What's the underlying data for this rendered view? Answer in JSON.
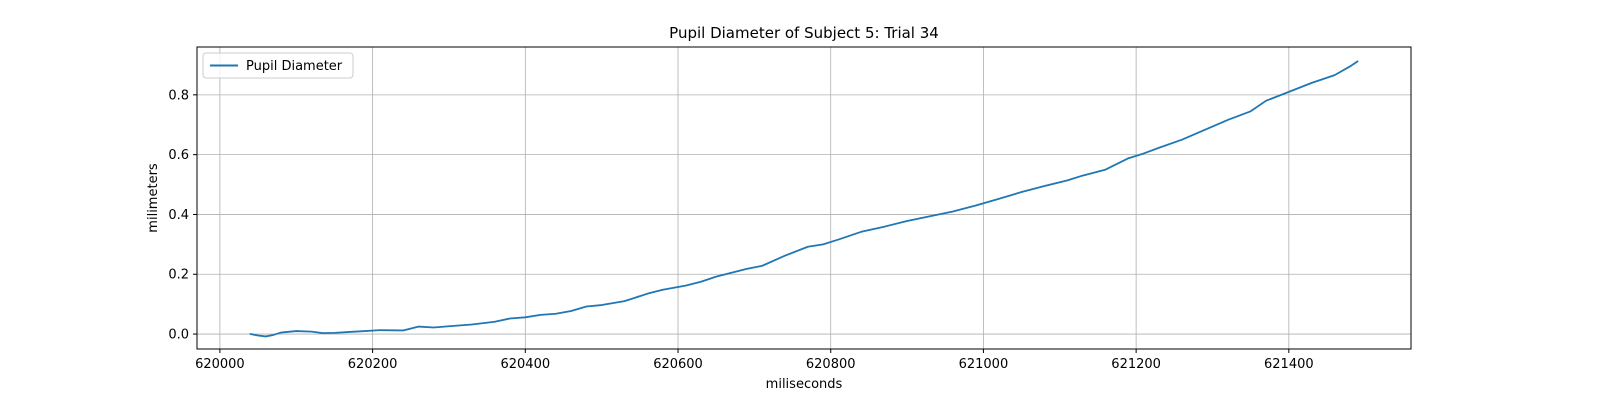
{
  "chart_data": {
    "type": "line",
    "title": "Pupil Diameter of Subject 5: Trial 34",
    "xlabel": "miliseconds",
    "ylabel": "milimeters",
    "xlim": [
      619970,
      621560
    ],
    "ylim": [
      -0.05,
      0.96
    ],
    "xticks": [
      620000,
      620200,
      620400,
      620600,
      620800,
      621000,
      621200,
      621400
    ],
    "yticks": [
      0.0,
      0.2,
      0.4,
      0.6,
      0.8
    ],
    "xtick_labels": [
      "620000",
      "620200",
      "620400",
      "620600",
      "620800",
      "621000",
      "621200",
      "621400"
    ],
    "ytick_labels": [
      "0.0",
      "0.2",
      "0.4",
      "0.6",
      "0.8"
    ],
    "grid": true,
    "legend_position": "top-left",
    "series": [
      {
        "name": "Pupil Diameter",
        "color": "#1f77b4",
        "points": [
          [
            620040,
            0.0
          ],
          [
            620050,
            -0.005
          ],
          [
            620060,
            -0.008
          ],
          [
            620070,
            -0.003
          ],
          [
            620080,
            0.005
          ],
          [
            620100,
            0.01
          ],
          [
            620120,
            0.008
          ],
          [
            620135,
            0.003
          ],
          [
            620150,
            0.004
          ],
          [
            620170,
            0.007
          ],
          [
            620190,
            0.01
          ],
          [
            620210,
            0.013
          ],
          [
            620240,
            0.012
          ],
          [
            620260,
            0.025
          ],
          [
            620280,
            0.022
          ],
          [
            620300,
            0.026
          ],
          [
            620330,
            0.032
          ],
          [
            620360,
            0.041
          ],
          [
            620380,
            0.052
          ],
          [
            620400,
            0.056
          ],
          [
            620420,
            0.064
          ],
          [
            620440,
            0.068
          ],
          [
            620460,
            0.077
          ],
          [
            620480,
            0.092
          ],
          [
            620500,
            0.097
          ],
          [
            620530,
            0.11
          ],
          [
            620560,
            0.135
          ],
          [
            620580,
            0.148
          ],
          [
            620610,
            0.162
          ],
          [
            620630,
            0.175
          ],
          [
            620650,
            0.192
          ],
          [
            620670,
            0.205
          ],
          [
            620690,
            0.218
          ],
          [
            620710,
            0.228
          ],
          [
            620740,
            0.262
          ],
          [
            620770,
            0.292
          ],
          [
            620790,
            0.3
          ],
          [
            620810,
            0.316
          ],
          [
            620840,
            0.342
          ],
          [
            620870,
            0.359
          ],
          [
            620900,
            0.378
          ],
          [
            620930,
            0.394
          ],
          [
            620960,
            0.41
          ],
          [
            620990,
            0.43
          ],
          [
            621020,
            0.452
          ],
          [
            621050,
            0.475
          ],
          [
            621080,
            0.495
          ],
          [
            621110,
            0.514
          ],
          [
            621130,
            0.53
          ],
          [
            621160,
            0.55
          ],
          [
            621190,
            0.588
          ],
          [
            621210,
            0.604
          ],
          [
            621230,
            0.623
          ],
          [
            621260,
            0.65
          ],
          [
            621290,
            0.683
          ],
          [
            621320,
            0.716
          ],
          [
            621350,
            0.745
          ],
          [
            621370,
            0.78
          ],
          [
            621400,
            0.81
          ],
          [
            621430,
            0.84
          ],
          [
            621460,
            0.866
          ],
          [
            621480,
            0.895
          ],
          [
            621490,
            0.912
          ]
        ]
      }
    ]
  }
}
